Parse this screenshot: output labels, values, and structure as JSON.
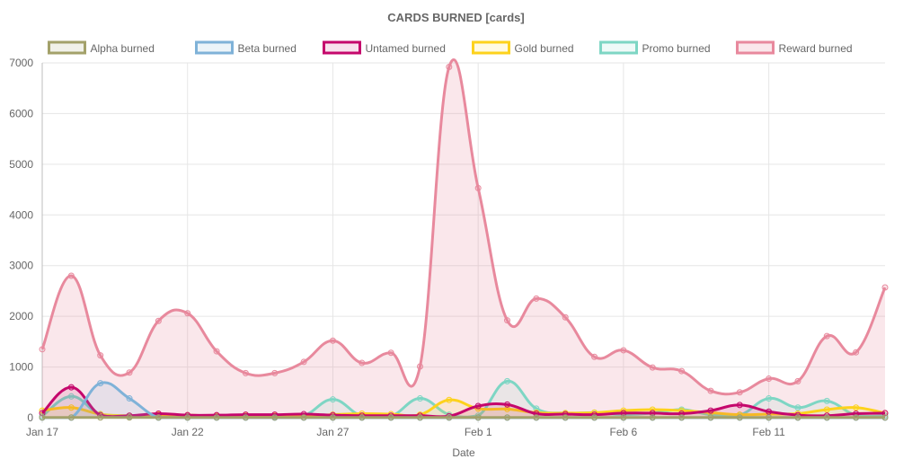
{
  "chart_data": {
    "type": "line",
    "title": "CARDS BURNED [cards]",
    "xlabel": "Date",
    "ylabel": "",
    "ylim": [
      0,
      7000
    ],
    "yticks": [
      0,
      1000,
      2000,
      3000,
      4000,
      5000,
      6000,
      7000
    ],
    "x_start": "2023-01-17",
    "x_end": "2023-02-15",
    "xticks": [
      {
        "date": "2023-01-17",
        "label": "Jan 17"
      },
      {
        "date": "2023-01-22",
        "label": "Jan 22"
      },
      {
        "date": "2023-01-27",
        "label": "Jan 27"
      },
      {
        "date": "2023-02-01",
        "label": "Feb 1"
      },
      {
        "date": "2023-02-06",
        "label": "Feb 6"
      },
      {
        "date": "2023-02-11",
        "label": "Feb 11"
      }
    ],
    "legend_position": "top",
    "grid": true,
    "x": [
      "2023-01-17",
      "2023-01-18",
      "2023-01-19",
      "2023-01-20",
      "2023-01-21",
      "2023-01-22",
      "2023-01-23",
      "2023-01-24",
      "2023-01-25",
      "2023-01-26",
      "2023-01-27",
      "2023-01-28",
      "2023-01-29",
      "2023-01-30",
      "2023-01-31",
      "2023-02-01",
      "2023-02-02",
      "2023-02-03",
      "2023-02-04",
      "2023-02-05",
      "2023-02-06",
      "2023-02-07",
      "2023-02-08",
      "2023-02-09",
      "2023-02-10",
      "2023-02-11",
      "2023-02-12",
      "2023-02-13",
      "2023-02-14",
      "2023-02-15"
    ],
    "series": [
      {
        "name": "Alpha burned",
        "color": "#a3a16a",
        "fill": "rgba(163,161,106,0.15)",
        "values": [
          5,
          5,
          5,
          5,
          5,
          5,
          5,
          5,
          5,
          5,
          5,
          5,
          5,
          5,
          5,
          5,
          5,
          5,
          5,
          5,
          5,
          5,
          5,
          5,
          5,
          5,
          5,
          5,
          5,
          5
        ]
      },
      {
        "name": "Beta burned",
        "color": "#7fb2d8",
        "fill": "rgba(127,178,216,0.15)",
        "values": [
          0,
          0,
          680,
          380,
          0,
          0,
          0,
          0,
          0,
          0,
          0,
          0,
          0,
          0,
          0,
          0,
          0,
          0,
          0,
          0,
          0,
          0,
          0,
          0,
          0,
          0,
          0,
          0,
          0,
          0
        ]
      },
      {
        "name": "Untamed burned",
        "color": "#c5076c",
        "fill": "rgba(197,7,108,0.12)",
        "values": [
          90,
          600,
          50,
          40,
          80,
          50,
          50,
          60,
          60,
          70,
          50,
          40,
          40,
          40,
          30,
          230,
          260,
          80,
          70,
          60,
          90,
          90,
          80,
          140,
          250,
          120,
          50,
          40,
          80,
          90
        ]
      },
      {
        "name": "Gold burned",
        "color": "#fdd21c",
        "fill": "rgba(253,210,28,0.12)",
        "values": [
          140,
          200,
          70,
          40,
          60,
          50,
          40,
          50,
          40,
          40,
          60,
          80,
          70,
          60,
          350,
          180,
          170,
          100,
          90,
          100,
          140,
          160,
          140,
          100,
          60,
          70,
          80,
          160,
          200,
          90
        ]
      },
      {
        "name": "Promo burned",
        "color": "#7ed6c4",
        "fill": "rgba(126,214,196,0.12)",
        "values": [
          30,
          420,
          60,
          20,
          30,
          30,
          30,
          30,
          20,
          40,
          360,
          30,
          30,
          380,
          60,
          40,
          720,
          180,
          90,
          100,
          60,
          90,
          160,
          60,
          50,
          380,
          200,
          330,
          50,
          40
        ]
      },
      {
        "name": "Reward burned",
        "color": "#e8899d",
        "fill": "rgba(232,137,157,0.2)",
        "values": [
          1350,
          2800,
          1230,
          890,
          1910,
          2060,
          1310,
          880,
          880,
          1100,
          1520,
          1080,
          1280,
          1010,
          6920,
          4530,
          1920,
          2350,
          1980,
          1200,
          1330,
          990,
          920,
          530,
          500,
          770,
          720,
          1610,
          1290,
          2570
        ]
      }
    ]
  }
}
